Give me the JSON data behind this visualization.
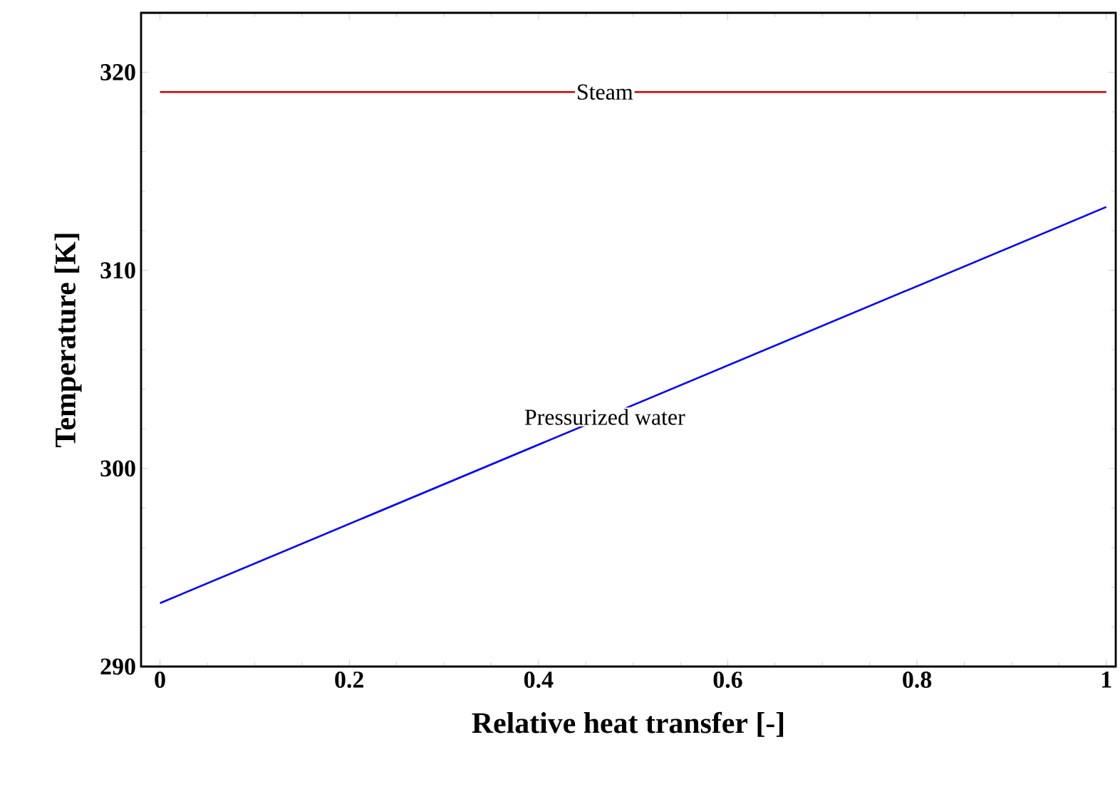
{
  "chart_data": {
    "type": "line",
    "xlabel": "Relative heat transfer [-]",
    "ylabel": "Temperature [K]",
    "x": [
      0,
      1
    ],
    "series": [
      {
        "name": "Steam",
        "color": "#d40000",
        "values": [
          319,
          319
        ]
      },
      {
        "name": "Pressurized water",
        "color": "#0000ff",
        "values": [
          293.2,
          313.2
        ]
      }
    ],
    "xlim": [
      -0.02,
      1.01
    ],
    "ylim": [
      290,
      323
    ],
    "xticks": [
      0,
      0.2,
      0.4,
      0.6,
      0.8,
      1
    ],
    "yticks": [
      290,
      300,
      310,
      320
    ],
    "grid": false,
    "marker": "none",
    "line_style": "solid"
  }
}
